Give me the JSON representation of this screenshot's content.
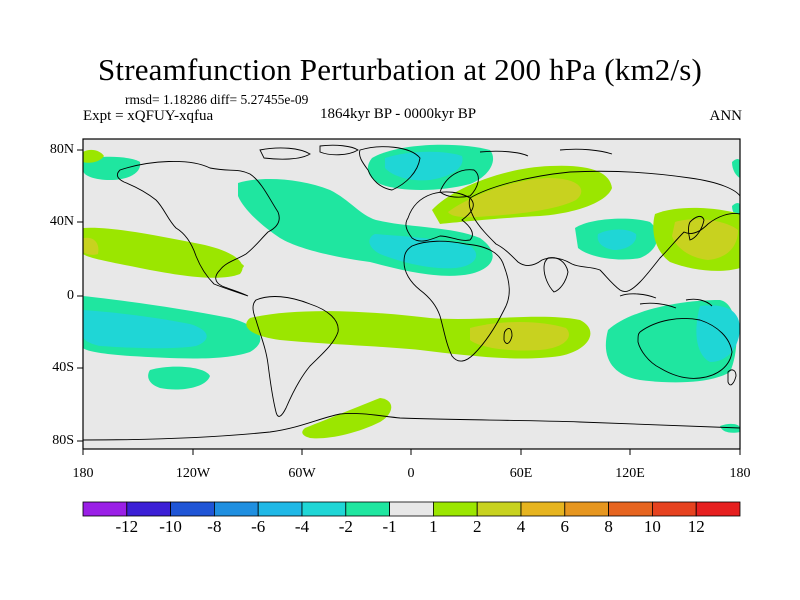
{
  "title": "Streamfunction Perturbation at 200 hPa (km2/s)",
  "rmsd_text": "rmsd= 1.18286 diff= 5.27455e-09",
  "expt_text": "Expt = xQFUY-xqfua",
  "period_text": "1864kyr BP - 0000kyr BP",
  "season_text": "ANN",
  "lat_labels": [
    "80N",
    "40N",
    "0",
    "40S",
    "80S"
  ],
  "lon_labels": [
    "180",
    "120W",
    "60W",
    "0",
    "60E",
    "120E",
    "180"
  ],
  "colorbar": {
    "labels": [
      "-12",
      "-10",
      "-8",
      "-6",
      "-4",
      "-2",
      "-1",
      "1",
      "2",
      "4",
      "6",
      "8",
      "10",
      "12"
    ],
    "colors": [
      "#9a1fe6",
      "#3c1fd6",
      "#1f55d6",
      "#1f8fe0",
      "#1fb8e6",
      "#1fd6d6",
      "#1fe6a0",
      "#e8e8e8",
      "#9be600",
      "#c8d21f",
      "#e6b41f",
      "#e6961f",
      "#e6641f",
      "#e6421f",
      "#e61f1f"
    ]
  },
  "colors": {
    "land_ocean_bg": "#e8e8e8",
    "neg_light": "#1fe6a0",
    "neg_mid": "#1fd6d6",
    "pos_light": "#9be600",
    "pos_mid": "#c8d21f"
  }
}
